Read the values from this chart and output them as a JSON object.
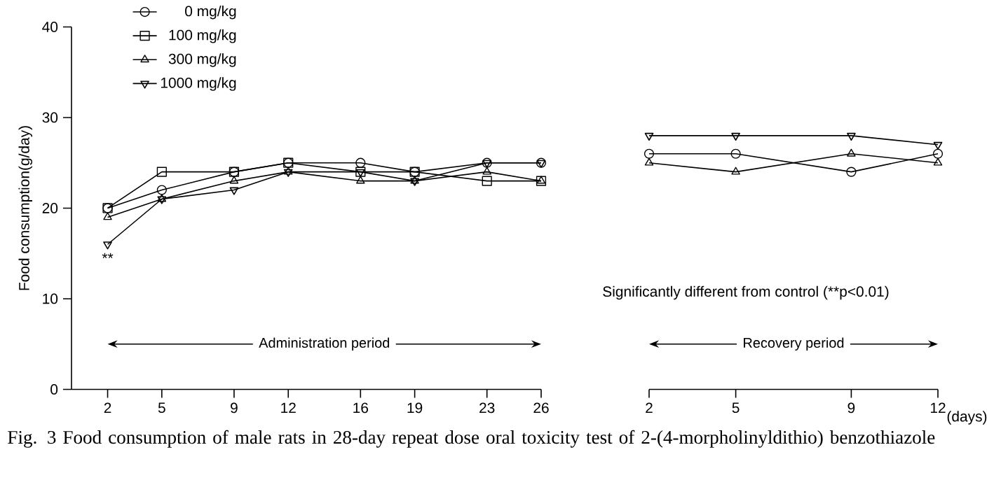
{
  "chart_data": [
    {
      "type": "line",
      "ylabel": "Food consumption(g/day)",
      "x": [
        2,
        5,
        9,
        12,
        16,
        19,
        23,
        26
      ],
      "xlim": [
        0,
        26
      ],
      "xticks": [
        2,
        5,
        9,
        12,
        16,
        19,
        23,
        26
      ],
      "ylim": [
        0,
        40
      ],
      "yticks": [
        0,
        10,
        20,
        30,
        40
      ],
      "legend": "top left",
      "series": [
        {
          "name": "0 mg/kg",
          "color": "#000000",
          "marker": "circle",
          "values": [
            20,
            22,
            24,
            25,
            25,
            24,
            25,
            25
          ]
        },
        {
          "name": "100 mg/kg",
          "color": "#000000",
          "marker": "square",
          "values": [
            20,
            24,
            24,
            25,
            24,
            24,
            23,
            23
          ]
        },
        {
          "name": "300 mg/kg",
          "color": "#000000",
          "marker": "triangle",
          "values": [
            19,
            21,
            23,
            24,
            23,
            23,
            24,
            23
          ]
        },
        {
          "name": "1000 mg/kg",
          "color": "#000000",
          "marker": "triangle down",
          "values": [
            16,
            21,
            22,
            24,
            24,
            23,
            25,
            25
          ]
        }
      ],
      "annotations": [
        "**",
        "Administration period",
        "Fig. 3  Food consumption of male rats in 28-day repeat dose oral toxicity test of 2-(4-morpholinyldithio) benzothiazole"
      ]
    },
    {
      "type": "line",
      "xlabel": "(days)",
      "x": [
        2,
        5,
        9,
        12
      ],
      "xlim": [
        2,
        12
      ],
      "xticks": [
        2,
        5,
        9,
        12
      ],
      "ylim": [
        0,
        40
      ],
      "tick_labels": "x",
      "series": [
        {
          "color": "#000000",
          "marker": "circle",
          "values": [
            26,
            26,
            24,
            26
          ]
        },
        {
          "color": "#000000",
          "marker": "triangle",
          "values": [
            25,
            24,
            26,
            25
          ]
        },
        {
          "color": "#000000",
          "marker": "triangle down",
          "values": [
            28,
            28,
            28,
            27
          ]
        }
      ],
      "annotations": [
        "Significantly different from control (**p<0.01)",
        "Recovery period"
      ]
    }
  ]
}
